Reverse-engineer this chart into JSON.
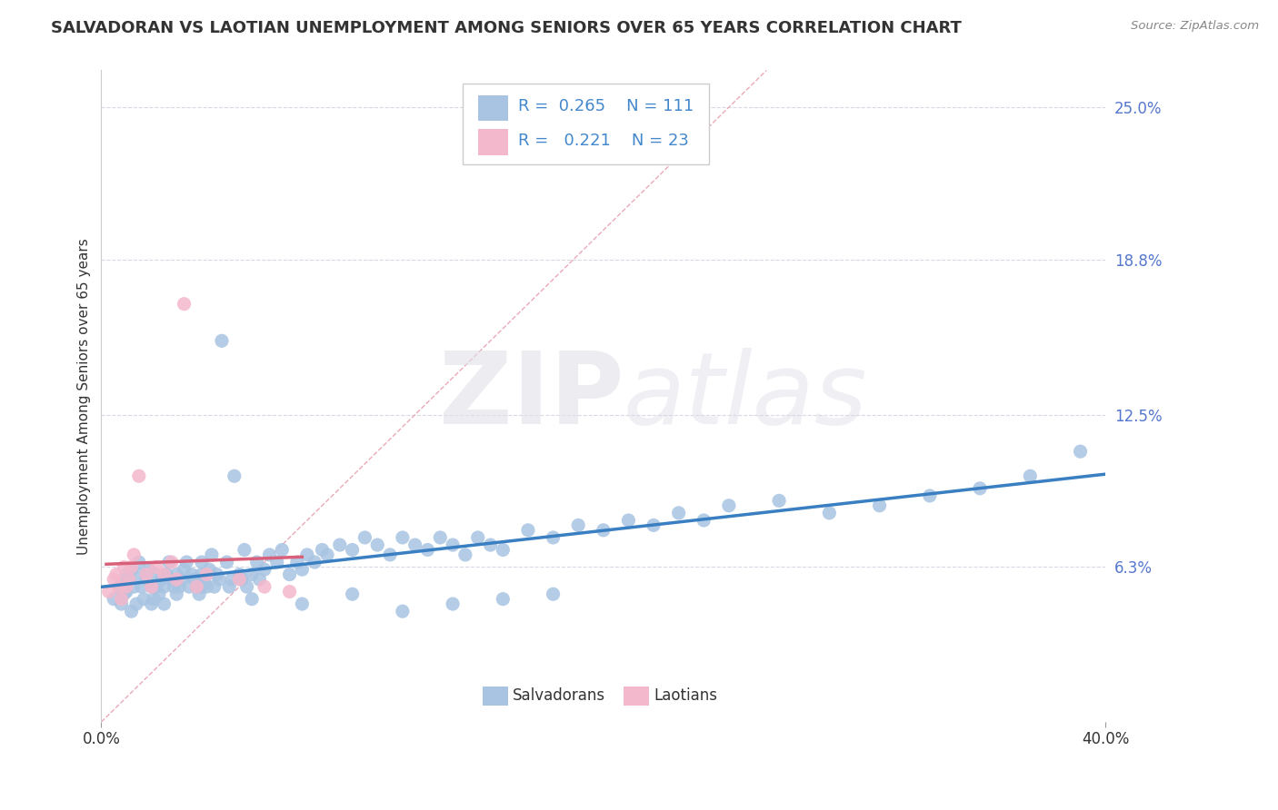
{
  "title": "SALVADORAN VS LAOTIAN UNEMPLOYMENT AMONG SENIORS OVER 65 YEARS CORRELATION CHART",
  "source": "Source: ZipAtlas.com",
  "ylabel": "Unemployment Among Seniors over 65 years",
  "xlim": [
    0.0,
    0.4
  ],
  "ylim": [
    0.0,
    0.265
  ],
  "yticks": [
    0.063,
    0.125,
    0.188,
    0.25
  ],
  "ytick_labels": [
    "6.3%",
    "12.5%",
    "18.8%",
    "25.0%"
  ],
  "xticks": [
    0.0,
    0.4
  ],
  "xtick_labels": [
    "0.0%",
    "40.0%"
  ],
  "salvadoran_R": 0.265,
  "salvadoran_N": 111,
  "laotian_R": 0.221,
  "laotian_N": 23,
  "salvadoran_color": "#a8c4e2",
  "laotian_color": "#f4b8cc",
  "salvadoran_line_color": "#3a7fc1",
  "laotian_line_color": "#d9607a",
  "diagonal_color": "#e8a0b0",
  "background_color": "#ffffff",
  "watermark_zip": "ZIP",
  "watermark_atlas": "atlas",
  "title_fontsize": 13,
  "legend_fontsize": 13,
  "axis_label_fontsize": 11,
  "tick_fontsize": 12,
  "salvadoran_x": [
    0.005,
    0.007,
    0.008,
    0.009,
    0.01,
    0.01,
    0.01,
    0.011,
    0.012,
    0.012,
    0.013,
    0.014,
    0.015,
    0.015,
    0.016,
    0.017,
    0.018,
    0.019,
    0.02,
    0.02,
    0.021,
    0.022,
    0.022,
    0.023,
    0.024,
    0.025,
    0.025,
    0.026,
    0.027,
    0.028,
    0.029,
    0.03,
    0.03,
    0.031,
    0.032,
    0.033,
    0.034,
    0.035,
    0.036,
    0.037,
    0.038,
    0.039,
    0.04,
    0.04,
    0.041,
    0.042,
    0.043,
    0.044,
    0.045,
    0.046,
    0.047,
    0.048,
    0.05,
    0.051,
    0.052,
    0.053,
    0.055,
    0.056,
    0.057,
    0.058,
    0.06,
    0.062,
    0.063,
    0.065,
    0.067,
    0.07,
    0.072,
    0.075,
    0.078,
    0.08,
    0.082,
    0.085,
    0.088,
    0.09,
    0.095,
    0.1,
    0.105,
    0.11,
    0.115,
    0.12,
    0.125,
    0.13,
    0.135,
    0.14,
    0.145,
    0.15,
    0.155,
    0.16,
    0.17,
    0.18,
    0.19,
    0.2,
    0.21,
    0.22,
    0.23,
    0.24,
    0.25,
    0.27,
    0.29,
    0.31,
    0.33,
    0.35,
    0.37,
    0.39,
    0.04,
    0.06,
    0.08,
    0.1,
    0.12,
    0.14,
    0.16,
    0.18
  ],
  "salvadoran_y": [
    0.05,
    0.055,
    0.048,
    0.052,
    0.06,
    0.057,
    0.053,
    0.058,
    0.045,
    0.062,
    0.055,
    0.048,
    0.06,
    0.065,
    0.055,
    0.05,
    0.058,
    0.062,
    0.048,
    0.055,
    0.05,
    0.055,
    0.06,
    0.052,
    0.058,
    0.048,
    0.055,
    0.06,
    0.065,
    0.058,
    0.055,
    0.06,
    0.052,
    0.055,
    0.058,
    0.062,
    0.065,
    0.055,
    0.06,
    0.058,
    0.055,
    0.052,
    0.06,
    0.065,
    0.058,
    0.055,
    0.062,
    0.068,
    0.055,
    0.06,
    0.058,
    0.155,
    0.065,
    0.055,
    0.058,
    0.1,
    0.06,
    0.058,
    0.07,
    0.055,
    0.06,
    0.065,
    0.058,
    0.062,
    0.068,
    0.065,
    0.07,
    0.06,
    0.065,
    0.062,
    0.068,
    0.065,
    0.07,
    0.068,
    0.072,
    0.07,
    0.075,
    0.072,
    0.068,
    0.075,
    0.072,
    0.07,
    0.075,
    0.072,
    0.068,
    0.075,
    0.072,
    0.07,
    0.078,
    0.075,
    0.08,
    0.078,
    0.082,
    0.08,
    0.085,
    0.082,
    0.088,
    0.09,
    0.085,
    0.088,
    0.092,
    0.095,
    0.1,
    0.11,
    0.055,
    0.05,
    0.048,
    0.052,
    0.045,
    0.048,
    0.05,
    0.052
  ],
  "laotian_x": [
    0.003,
    0.005,
    0.006,
    0.007,
    0.008,
    0.009,
    0.01,
    0.011,
    0.012,
    0.013,
    0.015,
    0.018,
    0.02,
    0.022,
    0.025,
    0.028,
    0.03,
    0.033,
    0.038,
    0.042,
    0.055,
    0.065,
    0.075
  ],
  "laotian_y": [
    0.053,
    0.058,
    0.06,
    0.055,
    0.05,
    0.063,
    0.055,
    0.058,
    0.063,
    0.068,
    0.1,
    0.06,
    0.055,
    0.063,
    0.06,
    0.065,
    0.058,
    0.17,
    0.055,
    0.06,
    0.058,
    0.055,
    0.053
  ]
}
